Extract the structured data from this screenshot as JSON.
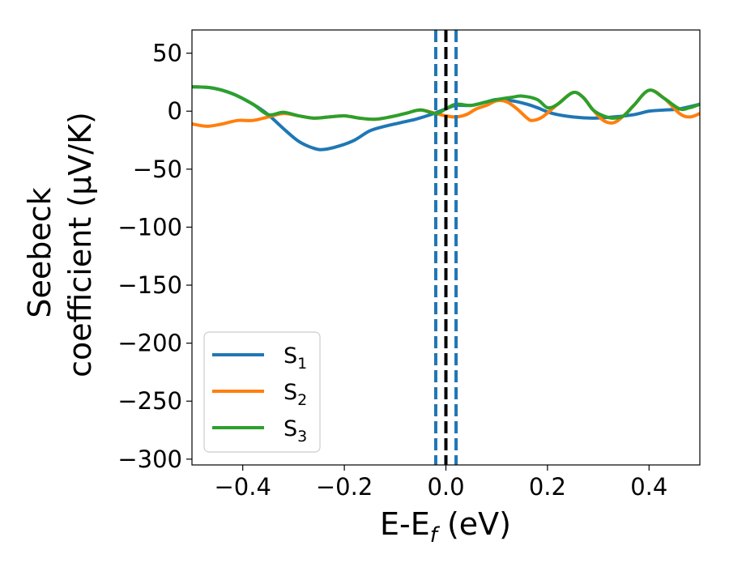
{
  "chart_data": {
    "type": "line",
    "xlabel_main": "E-E",
    "xlabel_sub": "f",
    "xlabel_unit": " (eV)",
    "ylabel_line1": "Seebeck",
    "ylabel_line2": "coefficient  (μV/K)",
    "xlim": [
      -0.5,
      0.5
    ],
    "ylim": [
      -305,
      70
    ],
    "x_ticks": [
      -0.4,
      -0.2,
      0.0,
      0.2,
      0.4
    ],
    "x_tick_labels": [
      "−0.4",
      "−0.2",
      "0.0",
      "0.2",
      "0.4"
    ],
    "y_ticks": [
      50,
      0,
      -50,
      -100,
      -150,
      -200,
      -250,
      -300
    ],
    "y_tick_labels": [
      "50",
      "0",
      "−50",
      "−100",
      "−150",
      "−200",
      "−250",
      "−300"
    ],
    "legend_position": "lower-left",
    "series": [
      {
        "name": "S",
        "sub": "1",
        "color": "#1f77b4",
        "points": [
          [
            -0.5,
            21
          ],
          [
            -0.46,
            20
          ],
          [
            -0.42,
            15
          ],
          [
            -0.38,
            6
          ],
          [
            -0.35,
            -3
          ],
          [
            -0.32,
            -15
          ],
          [
            -0.29,
            -26
          ],
          [
            -0.26,
            -32
          ],
          [
            -0.24,
            -33
          ],
          [
            -0.21,
            -30
          ],
          [
            -0.18,
            -25
          ],
          [
            -0.15,
            -17
          ],
          [
            -0.12,
            -13
          ],
          [
            -0.09,
            -10
          ],
          [
            -0.06,
            -7
          ],
          [
            -0.03,
            -3
          ],
          [
            0.0,
            2
          ],
          [
            0.02,
            5
          ],
          [
            0.05,
            5
          ],
          [
            0.08,
            8
          ],
          [
            0.1,
            10
          ],
          [
            0.13,
            9
          ],
          [
            0.16,
            6
          ],
          [
            0.18,
            3
          ],
          [
            0.21,
            -2
          ],
          [
            0.25,
            -5
          ],
          [
            0.29,
            -6
          ],
          [
            0.33,
            -5
          ],
          [
            0.37,
            -3
          ],
          [
            0.4,
            0
          ],
          [
            0.43,
            1
          ],
          [
            0.46,
            2
          ],
          [
            0.5,
            6
          ]
        ]
      },
      {
        "name": "S",
        "sub": "2",
        "color": "#ff7f0e",
        "points": [
          [
            -0.5,
            -11
          ],
          [
            -0.47,
            -13
          ],
          [
            -0.44,
            -11
          ],
          [
            -0.41,
            -8
          ],
          [
            -0.38,
            -8
          ],
          [
            -0.35,
            -5
          ],
          [
            -0.32,
            -2
          ],
          [
            -0.29,
            -4
          ],
          [
            -0.26,
            -6
          ],
          [
            -0.23,
            -5
          ],
          [
            -0.2,
            -4
          ],
          [
            -0.17,
            -6
          ],
          [
            -0.14,
            -7
          ],
          [
            -0.11,
            -5
          ],
          [
            -0.08,
            -2
          ],
          [
            -0.05,
            1
          ],
          [
            -0.02,
            -2
          ],
          [
            0.0,
            -4
          ],
          [
            0.02,
            -5
          ],
          [
            0.04,
            -3
          ],
          [
            0.06,
            2
          ],
          [
            0.08,
            5
          ],
          [
            0.1,
            9
          ],
          [
            0.12,
            8
          ],
          [
            0.14,
            2
          ],
          [
            0.16,
            -6
          ],
          [
            0.17,
            -8
          ],
          [
            0.19,
            -5
          ],
          [
            0.22,
            6
          ],
          [
            0.25,
            16
          ],
          [
            0.27,
            12
          ],
          [
            0.29,
            1
          ],
          [
            0.31,
            -8
          ],
          [
            0.33,
            -10
          ],
          [
            0.35,
            -4
          ],
          [
            0.37,
            5
          ],
          [
            0.4,
            18
          ],
          [
            0.43,
            11
          ],
          [
            0.46,
            -2
          ],
          [
            0.48,
            -5
          ],
          [
            0.5,
            -2
          ]
        ]
      },
      {
        "name": "S",
        "sub": "3",
        "color": "#2ca02c",
        "points": [
          [
            -0.5,
            21
          ],
          [
            -0.46,
            20
          ],
          [
            -0.42,
            15
          ],
          [
            -0.38,
            6
          ],
          [
            -0.35,
            -3
          ],
          [
            -0.32,
            -1
          ],
          [
            -0.29,
            -4
          ],
          [
            -0.26,
            -6
          ],
          [
            -0.23,
            -5
          ],
          [
            -0.2,
            -4
          ],
          [
            -0.17,
            -6
          ],
          [
            -0.14,
            -7
          ],
          [
            -0.11,
            -5
          ],
          [
            -0.08,
            -2
          ],
          [
            -0.05,
            1
          ],
          [
            -0.02,
            -2
          ],
          [
            0.0,
            2
          ],
          [
            0.02,
            6
          ],
          [
            0.05,
            5
          ],
          [
            0.08,
            8
          ],
          [
            0.1,
            10
          ],
          [
            0.13,
            12
          ],
          [
            0.15,
            13
          ],
          [
            0.18,
            10
          ],
          [
            0.2,
            3
          ],
          [
            0.22,
            6
          ],
          [
            0.25,
            16
          ],
          [
            0.27,
            12
          ],
          [
            0.29,
            1
          ],
          [
            0.31,
            -4
          ],
          [
            0.33,
            -6
          ],
          [
            0.35,
            -4
          ],
          [
            0.37,
            5
          ],
          [
            0.4,
            18
          ],
          [
            0.43,
            11
          ],
          [
            0.46,
            2
          ],
          [
            0.48,
            3
          ],
          [
            0.5,
            6
          ]
        ]
      }
    ],
    "vlines": [
      {
        "x": 0.0,
        "color": "#000000",
        "style": "dashed"
      },
      {
        "x": -0.02,
        "color": "#1f77b4",
        "style": "dashed"
      },
      {
        "x": 0.02,
        "color": "#1f77b4",
        "style": "dashed"
      }
    ]
  }
}
